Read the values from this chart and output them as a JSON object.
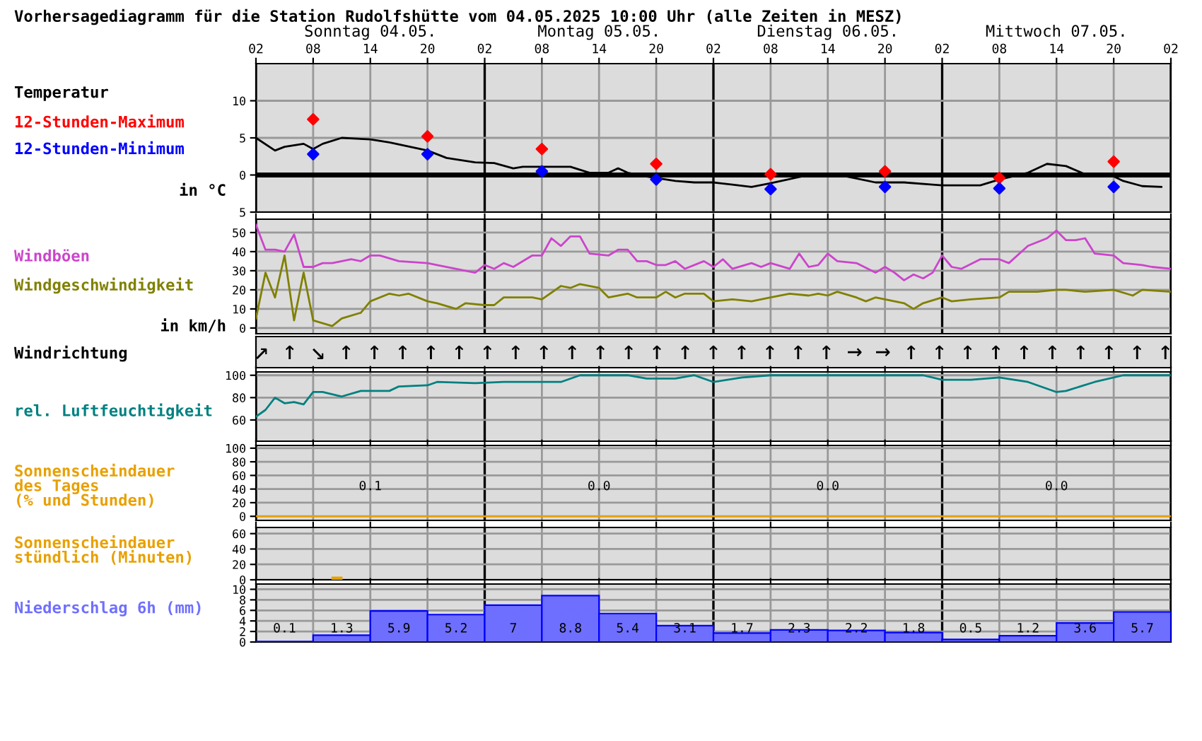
{
  "chart_data": [
    {
      "type": "line",
      "title": "Vorhersagediagramm für die Station Rudolfshütte vom 04.05.2025 10:00 Uhr (alle Zeiten in MESZ)",
      "ylabel": "Temperatur",
      "annotations": [
        "Sonntag 04.05.",
        "Montag 05.05.",
        "Dienstag 06.05.",
        "Mittwoch 07.05.",
        "in °C"
      ],
      "xlim": [
        "2025-05-04T02:00",
        "2025-05-08T02:00"
      ],
      "xticks": [
        {
          "value": "2025-05-04T02:00",
          "label": "02"
        },
        {
          "value": "2025-05-04T08:00",
          "label": "08"
        },
        {
          "value": "2025-05-04T14:00",
          "label": "14"
        },
        {
          "value": "2025-05-04T20:00",
          "label": "20"
        },
        {
          "value": "2025-05-05T02:00",
          "label": "02"
        },
        {
          "value": "2025-05-05T08:00",
          "label": "08"
        },
        {
          "value": "2025-05-05T14:00",
          "label": "14"
        },
        {
          "value": "2025-05-05T20:00",
          "label": "20"
        },
        {
          "value": "2025-05-06T02:00",
          "label": "02"
        },
        {
          "value": "2025-05-06T08:00",
          "label": "08"
        },
        {
          "value": "2025-05-06T14:00",
          "label": "14"
        },
        {
          "value": "2025-05-06T20:00",
          "label": "20"
        },
        {
          "value": "2025-05-07T02:00",
          "label": "02"
        },
        {
          "value": "2025-05-07T08:00",
          "label": "08"
        },
        {
          "value": "2025-05-07T14:00",
          "label": "14"
        },
        {
          "value": "2025-05-07T20:00",
          "label": "20"
        },
        {
          "value": "2025-05-08T02:00",
          "label": "02"
        }
      ],
      "ylim": [
        -5,
        15
      ],
      "yticks": [
        {
          "value": -5,
          "label": "5"
        },
        0,
        5,
        10
      ],
      "grid": true,
      "ref_lines": [
        {
          "axis": "y",
          "value": 0,
          "color": "#000000"
        }
      ],
      "series": [
        {
          "color": "#000000",
          "x": [
            "2025-05-04T02:00",
            "2025-05-04T04:00",
            "2025-05-04T05:00",
            "2025-05-04T07:00",
            "2025-05-04T08:00",
            "2025-05-04T09:00",
            "2025-05-04T11:00",
            "2025-05-04T14:00",
            "2025-05-04T16:00",
            "2025-05-04T20:00",
            "2025-05-04T22:00",
            "2025-05-05T01:00",
            "2025-05-05T03:00",
            "2025-05-05T05:00",
            "2025-05-05T06:00",
            "2025-05-05T11:00",
            "2025-05-05T13:00",
            "2025-05-05T15:00",
            "2025-05-05T16:00",
            "2025-05-05T17:00",
            "2025-05-05T19:00",
            "2025-05-05T22:00",
            "2025-05-06T00:00",
            "2025-05-06T02:00",
            "2025-05-06T04:00",
            "2025-05-06T06:00",
            "2025-05-06T08:00",
            "2025-05-06T12:00",
            "2025-05-06T16:00",
            "2025-05-06T19:00",
            "2025-05-06T22:00",
            "2025-05-07T01:00",
            "2025-05-07T02:00",
            "2025-05-07T06:00",
            "2025-05-07T08:00",
            "2025-05-07T11:00",
            "2025-05-07T13:00",
            "2025-05-07T15:00",
            "2025-05-07T17:00",
            "2025-05-07T20:00",
            "2025-05-07T21:00",
            "2025-05-07T23:00",
            "2025-05-08T01:00"
          ],
          "values": [
            5,
            3.3,
            3.8,
            4.2,
            3.5,
            4.2,
            5,
            4.8,
            4.4,
            3.3,
            2.3,
            1.7,
            1.6,
            0.9,
            1.1,
            1.1,
            0.3,
            0.3,
            0.9,
            0.3,
            -0.2,
            -0.8,
            -1,
            -1,
            -1.3,
            -1.6,
            -1.1,
            0,
            -0.2,
            -1,
            -1,
            -1.3,
            -1.4,
            -1.4,
            -0.6,
            0.3,
            1.5,
            1.2,
            0.1,
            -0.2,
            -0.8,
            -1.5,
            -1.6
          ]
        },
        {
          "type": "scatter",
          "marker": "diamond",
          "name": "12-Stunden-Maximum",
          "color": "#ff0000",
          "x": [
            "2025-05-04T08:00",
            "2025-05-04T20:00",
            "2025-05-05T08:00",
            "2025-05-05T20:00",
            "2025-05-06T08:00",
            "2025-05-06T20:00",
            "2025-05-07T08:00",
            "2025-05-07T20:00"
          ],
          "values": [
            7.5,
            5.2,
            3.5,
            1.5,
            0.1,
            0.5,
            -0.4,
            1.8
          ]
        },
        {
          "type": "scatter",
          "marker": "diamond",
          "name": "12-Stunden-Minimum",
          "color": "#0000ff",
          "x": [
            "2025-05-04T08:00",
            "2025-05-04T20:00",
            "2025-05-05T08:00",
            "2025-05-05T20:00",
            "2025-05-06T08:00",
            "2025-05-06T20:00",
            "2025-05-07T08:00",
            "2025-05-07T20:00"
          ],
          "values": [
            2.8,
            2.8,
            0.5,
            -0.6,
            -1.9,
            -1.6,
            -1.8,
            -1.6
          ]
        }
      ]
    },
    {
      "type": "line",
      "annotations": [
        "in km/h"
      ],
      "tick_labels": "y",
      "xlim": [
        "2025-05-04T02:00",
        "2025-05-08T02:00"
      ],
      "xticks": [
        "2025-05-04T02:00",
        "2025-05-04T08:00",
        "2025-05-04T14:00",
        "2025-05-04T20:00",
        "2025-05-05T02:00",
        "2025-05-05T08:00",
        "2025-05-05T14:00",
        "2025-05-05T20:00",
        "2025-05-06T02:00",
        "2025-05-06T08:00",
        "2025-05-06T14:00",
        "2025-05-06T20:00",
        "2025-05-07T02:00",
        "2025-05-07T08:00",
        "2025-05-07T14:00",
        "2025-05-07T20:00",
        "2025-05-08T02:00"
      ],
      "ylim": [
        -3,
        57
      ],
      "yticks": [
        0,
        10,
        20,
        30,
        40,
        50
      ],
      "grid": true,
      "series": [
        {
          "name": "Windböen",
          "color": "#cc44cc",
          "x": [
            "2025-05-04T02:00",
            "2025-05-04T03:00",
            "2025-05-04T04:00",
            "2025-05-04T05:00",
            "2025-05-04T06:00",
            "2025-05-04T07:00",
            "2025-05-04T08:00",
            "2025-05-04T09:00",
            "2025-05-04T10:00",
            "2025-05-04T12:00",
            "2025-05-04T13:00",
            "2025-05-04T14:00",
            "2025-05-04T15:00",
            "2025-05-04T17:00",
            "2025-05-04T20:00",
            "2025-05-04T21:00",
            "2025-05-05T01:00",
            "2025-05-05T02:00",
            "2025-05-05T03:00",
            "2025-05-05T04:00",
            "2025-05-05T05:00",
            "2025-05-05T07:00",
            "2025-05-05T08:00",
            "2025-05-05T09:00",
            "2025-05-05T10:00",
            "2025-05-05T11:00",
            "2025-05-05T12:00",
            "2025-05-05T13:00",
            "2025-05-05T15:00",
            "2025-05-05T16:00",
            "2025-05-05T17:00",
            "2025-05-05T18:00",
            "2025-05-05T19:00",
            "2025-05-05T20:00",
            "2025-05-05T21:00",
            "2025-05-05T22:00",
            "2025-05-05T23:00",
            "2025-05-06T01:00",
            "2025-05-06T02:00",
            "2025-05-06T03:00",
            "2025-05-06T04:00",
            "2025-05-06T06:00",
            "2025-05-06T07:00",
            "2025-05-06T08:00",
            "2025-05-06T10:00",
            "2025-05-06T11:00",
            "2025-05-06T12:00",
            "2025-05-06T13:00",
            "2025-05-06T14:00",
            "2025-05-06T15:00",
            "2025-05-06T17:00",
            "2025-05-06T19:00",
            "2025-05-06T20:00",
            "2025-05-06T21:00",
            "2025-05-06T22:00",
            "2025-05-06T23:00",
            "2025-05-07T00:00",
            "2025-05-07T01:00",
            "2025-05-07T02:00",
            "2025-05-07T03:00",
            "2025-05-07T04:00",
            "2025-05-07T06:00",
            "2025-05-07T08:00",
            "2025-05-07T09:00",
            "2025-05-07T11:00",
            "2025-05-07T13:00",
            "2025-05-07T14:00",
            "2025-05-07T15:00",
            "2025-05-07T16:00",
            "2025-05-07T17:00",
            "2025-05-07T18:00",
            "2025-05-07T20:00",
            "2025-05-07T21:00",
            "2025-05-07T23:00",
            "2025-05-08T00:00",
            "2025-05-08T02:00"
          ],
          "values": [
            54,
            41,
            41,
            40,
            49,
            32,
            32,
            34,
            34,
            36,
            35,
            38,
            38,
            35,
            34,
            33,
            29,
            33,
            31,
            34,
            32,
            38,
            38,
            47,
            43,
            48,
            48,
            39,
            38,
            41,
            41,
            35,
            35,
            33,
            33,
            35,
            31,
            35,
            32,
            36,
            31,
            34,
            32,
            34,
            31,
            39,
            32,
            33,
            39,
            35,
            34,
            29,
            32,
            29,
            25,
            28,
            26,
            29,
            38,
            32,
            31,
            36,
            36,
            34,
            43,
            47,
            51,
            46,
            46,
            47,
            39,
            38,
            34,
            33,
            32,
            31
          ]
        },
        {
          "name": "Windgeschwindigkeit",
          "color": "#808000",
          "x": [
            "2025-05-04T02:00",
            "2025-05-04T03:00",
            "2025-05-04T04:00",
            "2025-05-04T05:00",
            "2025-05-04T06:00",
            "2025-05-04T07:00",
            "2025-05-04T08:00",
            "2025-05-04T10:00",
            "2025-05-04T11:00",
            "2025-05-04T13:00",
            "2025-05-04T14:00",
            "2025-05-04T16:00",
            "2025-05-04T17:00",
            "2025-05-04T18:00",
            "2025-05-04T20:00",
            "2025-05-04T21:00",
            "2025-05-04T23:00",
            "2025-05-05T00:00",
            "2025-05-05T02:00",
            "2025-05-05T03:00",
            "2025-05-05T04:00",
            "2025-05-05T07:00",
            "2025-05-05T08:00",
            "2025-05-05T10:00",
            "2025-05-05T11:00",
            "2025-05-05T12:00",
            "2025-05-05T14:00",
            "2025-05-05T15:00",
            "2025-05-05T17:00",
            "2025-05-05T18:00",
            "2025-05-05T20:00",
            "2025-05-05T21:00",
            "2025-05-05T22:00",
            "2025-05-05T23:00",
            "2025-05-06T01:00",
            "2025-05-06T02:00",
            "2025-05-06T04:00",
            "2025-05-06T06:00",
            "2025-05-06T08:00",
            "2025-05-06T10:00",
            "2025-05-06T12:00",
            "2025-05-06T13:00",
            "2025-05-06T14:00",
            "2025-05-06T15:00",
            "2025-05-06T17:00",
            "2025-05-06T18:00",
            "2025-05-06T19:00",
            "2025-05-06T21:00",
            "2025-05-06T22:00",
            "2025-05-06T23:00",
            "2025-05-07T00:00",
            "2025-05-07T02:00",
            "2025-05-07T03:00",
            "2025-05-07T05:00",
            "2025-05-07T08:00",
            "2025-05-07T09:00",
            "2025-05-07T12:00",
            "2025-05-07T14:00",
            "2025-05-07T15:00",
            "2025-05-07T17:00",
            "2025-05-07T20:00",
            "2025-05-07T22:00",
            "2025-05-07T23:00",
            "2025-05-08T02:00"
          ],
          "values": [
            5,
            29,
            16,
            38,
            4,
            29,
            4,
            1,
            5,
            8,
            14,
            18,
            17,
            18,
            14,
            13,
            10,
            13,
            12,
            12,
            16,
            16,
            15,
            22,
            21,
            23,
            21,
            16,
            18,
            16,
            16,
            19,
            16,
            18,
            18,
            14,
            15,
            14,
            16,
            18,
            17,
            18,
            17,
            19,
            16,
            14,
            16,
            14,
            13,
            10,
            13,
            16,
            14,
            15,
            16,
            19,
            19,
            20,
            20,
            19,
            20,
            17,
            20,
            19
          ]
        }
      ]
    },
    {
      "type": "other",
      "ylabel": "Windrichtung",
      "annotations": [
        "↗",
        "↑",
        "↘",
        "↑",
        "↑",
        "↑",
        "↑",
        "↑",
        "↑",
        "↑",
        "↑",
        "↑",
        "↑",
        "↑",
        "↑",
        "↑",
        "↑",
        "↑",
        "↑",
        "↑",
        "↑",
        "→",
        "→",
        "↑",
        "↑",
        "↑",
        "↑",
        "↑",
        "↑",
        "↑",
        "↑",
        "↑",
        "↑"
      ]
    },
    {
      "type": "line",
      "tick_labels": "y",
      "xlim": [
        "2025-05-04T02:00",
        "2025-05-08T02:00"
      ],
      "xticks": [
        "2025-05-04T02:00",
        "2025-05-04T08:00",
        "2025-05-04T14:00",
        "2025-05-04T20:00",
        "2025-05-05T02:00",
        "2025-05-05T08:00",
        "2025-05-05T14:00",
        "2025-05-05T20:00",
        "2025-05-06T02:00",
        "2025-05-06T08:00",
        "2025-05-06T14:00",
        "2025-05-06T20:00",
        "2025-05-07T02:00",
        "2025-05-07T08:00",
        "2025-05-07T14:00",
        "2025-05-07T20:00",
        "2025-05-08T02:00"
      ],
      "ylim": [
        41,
        103
      ],
      "yticks": [
        60,
        80,
        100
      ],
      "grid": true,
      "series": [
        {
          "name": "rel. Luftfeuchtigkeit",
          "color": "#008080",
          "x": [
            "2025-05-04T02:00",
            "2025-05-04T03:00",
            "2025-05-04T04:00",
            "2025-05-04T05:00",
            "2025-05-04T06:00",
            "2025-05-04T07:00",
            "2025-05-04T08:00",
            "2025-05-04T09:00",
            "2025-05-04T11:00",
            "2025-05-04T13:00",
            "2025-05-04T16:00",
            "2025-05-04T17:00",
            "2025-05-04T20:00",
            "2025-05-04T21:00",
            "2025-05-05T01:00",
            "2025-05-05T04:00",
            "2025-05-05T10:00",
            "2025-05-05T12:00",
            "2025-05-05T17:00",
            "2025-05-05T19:00",
            "2025-05-05T22:00",
            "2025-05-06T00:00",
            "2025-05-06T02:00",
            "2025-05-06T05:00",
            "2025-05-06T08:00",
            "2025-05-07T00:00",
            "2025-05-07T02:00",
            "2025-05-07T05:00",
            "2025-05-07T08:00",
            "2025-05-07T11:00",
            "2025-05-07T14:00",
            "2025-05-07T15:00",
            "2025-05-07T18:00",
            "2025-05-07T21:00",
            "2025-05-08T02:00"
          ],
          "values": [
            63,
            69,
            80,
            75,
            76,
            74,
            85,
            85,
            81,
            86,
            86,
            90,
            91,
            94,
            93,
            94,
            94,
            100,
            100,
            97,
            97,
            100,
            94,
            98,
            100,
            100,
            96,
            96,
            98,
            94,
            85,
            86,
            94,
            100,
            100
          ]
        }
      ]
    },
    {
      "type": "bar",
      "tick_labels": "y",
      "xlim": [
        "2025-05-04T02:00",
        "2025-05-08T02:00"
      ],
      "xticks": [
        "2025-05-04T02:00",
        "2025-05-04T08:00",
        "2025-05-04T14:00",
        "2025-05-04T20:00",
        "2025-05-05T02:00",
        "2025-05-05T08:00",
        "2025-05-05T14:00",
        "2025-05-05T20:00",
        "2025-05-06T02:00",
        "2025-05-06T08:00",
        "2025-05-06T14:00",
        "2025-05-06T20:00",
        "2025-05-07T02:00",
        "2025-05-07T08:00",
        "2025-05-07T14:00",
        "2025-05-07T20:00",
        "2025-05-08T02:00"
      ],
      "ylim": [
        -6,
        104
      ],
      "yticks": [
        0,
        20,
        40,
        60,
        80,
        100
      ],
      "grid": true,
      "series": [
        {
          "name": "Sonnenscheindauer\ndes Tages\n(% und Stunden)",
          "color": "#e8a000",
          "x": [
            "2025-05-04T14:00",
            "2025-05-05T14:00",
            "2025-05-06T14:00",
            "2025-05-07T14:00"
          ],
          "values": [
            0.1,
            0,
            0,
            0
          ],
          "value_labels": [
            "0.1",
            "0.0",
            "0.0",
            "0.0"
          ]
        }
      ]
    },
    {
      "type": "bar",
      "tick_labels": "y",
      "xlim": [
        "2025-05-04T02:00",
        "2025-05-08T02:00"
      ],
      "xticks": [
        "2025-05-04T02:00",
        "2025-05-04T08:00",
        "2025-05-04T14:00",
        "2025-05-04T20:00",
        "2025-05-05T02:00",
        "2025-05-05T08:00",
        "2025-05-05T14:00",
        "2025-05-05T20:00",
        "2025-05-06T02:00",
        "2025-05-06T08:00",
        "2025-05-06T14:00",
        "2025-05-06T20:00",
        "2025-05-07T02:00",
        "2025-05-07T08:00",
        "2025-05-07T14:00",
        "2025-05-07T20:00",
        "2025-05-08T02:00"
      ],
      "ylim": [
        0,
        68
      ],
      "yticks": [
        0,
        20,
        40,
        60
      ],
      "grid": true,
      "series": [
        {
          "name": "Sonnenscheindauer\nstündlich (Minuten)",
          "color": "#e8a000",
          "x": [
            "2025-05-04T10:30"
          ],
          "values": [
            3
          ]
        }
      ]
    },
    {
      "type": "bar",
      "tick_labels": "y",
      "data_labels": true,
      "xlim": [
        "2025-05-04T02:00",
        "2025-05-08T02:00"
      ],
      "xticks": [
        "2025-05-04T02:00",
        "2025-05-04T08:00",
        "2025-05-04T14:00",
        "2025-05-04T20:00",
        "2025-05-05T02:00",
        "2025-05-05T08:00",
        "2025-05-05T14:00",
        "2025-05-05T20:00",
        "2025-05-06T02:00",
        "2025-05-06T08:00",
        "2025-05-06T14:00",
        "2025-05-06T20:00",
        "2025-05-07T02:00",
        "2025-05-07T08:00",
        "2025-05-07T14:00",
        "2025-05-07T20:00",
        "2025-05-08T02:00"
      ],
      "ylim": [
        0,
        11
      ],
      "yticks": [
        0,
        2,
        4,
        6,
        8,
        10
      ],
      "grid": true,
      "series": [
        {
          "name": "Niederschlag 6h (mm)",
          "color": "#6f6fff",
          "x": [
            "2025-05-04T05:00",
            "2025-05-04T11:00",
            "2025-05-04T17:00",
            "2025-05-04T23:00",
            "2025-05-05T05:00",
            "2025-05-05T11:00",
            "2025-05-05T17:00",
            "2025-05-05T23:00",
            "2025-05-06T05:00",
            "2025-05-06T11:00",
            "2025-05-06T17:00",
            "2025-05-06T23:00",
            "2025-05-07T05:00",
            "2025-05-07T11:00",
            "2025-05-07T17:00",
            "2025-05-07T23:00"
          ],
          "values": [
            0.1,
            1.3,
            5.9,
            5.2,
            7,
            8.8,
            5.4,
            3.1,
            1.7,
            2.3,
            2.2,
            1.8,
            0.5,
            1.2,
            3.6,
            5.7
          ]
        }
      ]
    }
  ]
}
